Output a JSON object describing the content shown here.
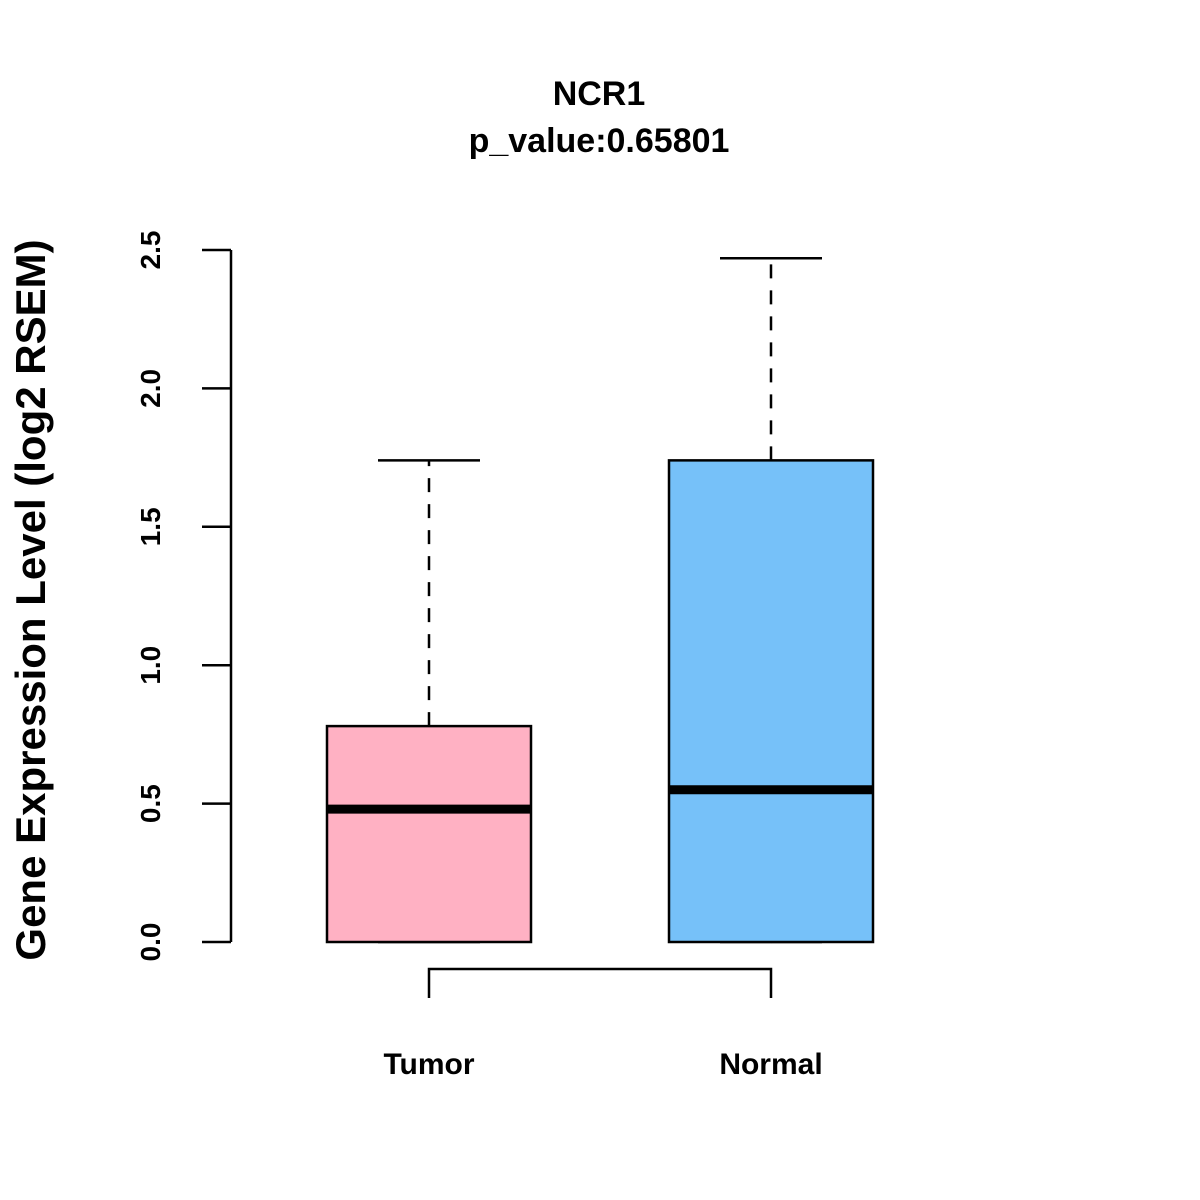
{
  "chart_data": {
    "type": "boxplot",
    "title": "NCR1",
    "subtitle": "p_value:0.65801",
    "xlabel": "",
    "ylabel": "Gene Expression Level (log2 RSEM)",
    "ylim": [
      0,
      2.5
    ],
    "yticks": [
      0,
      0.5,
      1,
      1.5,
      2,
      2.5
    ],
    "ytick_labels": [
      "0.0",
      "0.5",
      "1.0",
      "1.5",
      "2.0",
      "2.5"
    ],
    "categories": [
      "Tumor",
      "Normal"
    ],
    "boxes": [
      {
        "category": "Tumor",
        "min": 0,
        "q1": 0,
        "median": 0.48,
        "q3": 0.78,
        "max": 1.74,
        "color": "#FFB1C3"
      },
      {
        "category": "Normal",
        "min": 0,
        "q1": 0,
        "median": 0.55,
        "q3": 1.74,
        "max": 2.47,
        "color": "#76C1F9"
      }
    ],
    "comparison_bracket": {
      "from": "Tumor",
      "to": "Normal"
    },
    "grid": false,
    "legend": "none"
  }
}
